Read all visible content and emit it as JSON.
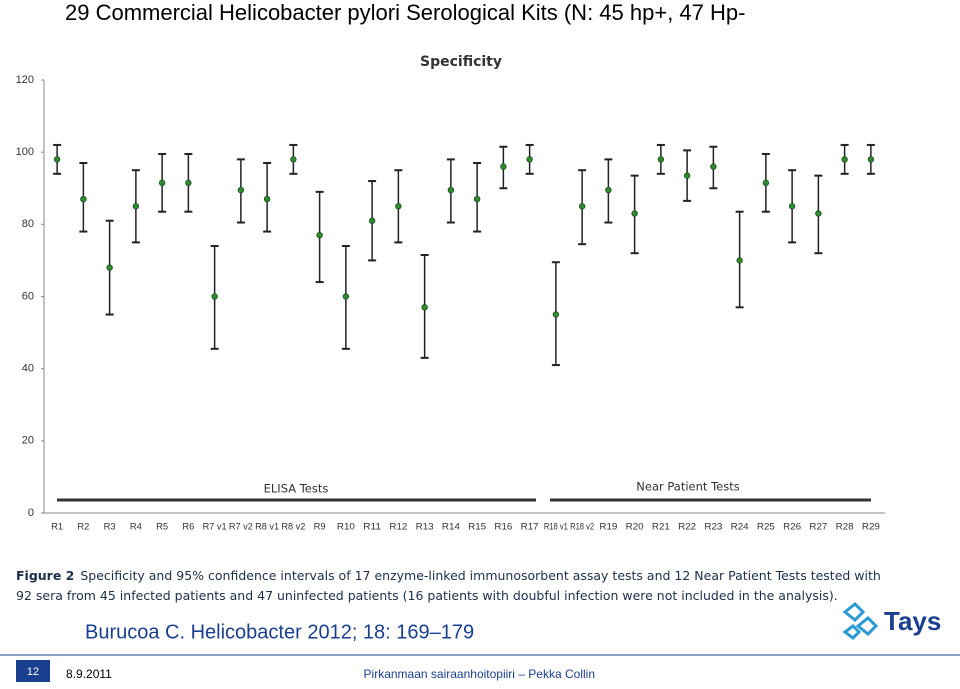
{
  "slide_title": "29 Commercial Helicobacter pylori Serological Kits (N: 45 hp+, 47 Hp-",
  "chart_data": {
    "type": "errorbar",
    "title": "Specificity",
    "categories": [
      "R1",
      "R2",
      "R3",
      "R4",
      "R5",
      "R6",
      "R7 v1",
      "R7 v2",
      "R8 v1",
      "R8 v2",
      "R9",
      "R10",
      "R11",
      "R12",
      "R13",
      "R14",
      "R15",
      "R16",
      "R17",
      "R18 v1",
      "R18 v2",
      "R19",
      "R20",
      "R21",
      "R22",
      "R23",
      "R24",
      "R25",
      "R26",
      "R27",
      "R28",
      "R29"
    ],
    "values": [
      98,
      87,
      68,
      85,
      91.5,
      91.5,
      60,
      89.5,
      87,
      98,
      77,
      60,
      81,
      85,
      57,
      89.5,
      87,
      96,
      98,
      55,
      85,
      89.5,
      83,
      98,
      93.5,
      96,
      70,
      91.5,
      85,
      83,
      98,
      98
    ],
    "upper": [
      102,
      97,
      81,
      95,
      99.5,
      99.5,
      74,
      98,
      97,
      102,
      89,
      74,
      92,
      95,
      71.5,
      98,
      97,
      101.5,
      102,
      69.5,
      95,
      98,
      93.5,
      102,
      100.5,
      101.5,
      83.5,
      99.5,
      95,
      93.5,
      102,
      102
    ],
    "lower": [
      94,
      78,
      55,
      75,
      83.5,
      83.5,
      45.5,
      80.5,
      78,
      94,
      64,
      45.5,
      70,
      75,
      43,
      80.5,
      78,
      90,
      94,
      41,
      74.5,
      80.5,
      72,
      94,
      86.5,
      90,
      57,
      83.5,
      75,
      72,
      94,
      94
    ],
    "color": "#2e8b2e",
    "bar_color": "#222222",
    "ylim": [
      0,
      120
    ],
    "yticks": [
      0,
      20,
      40,
      60,
      80,
      100,
      120
    ],
    "grid": false,
    "annotations": [
      "ELISA Tests",
      "Near Patient Tests"
    ]
  },
  "caption": {
    "label": "Figure 2",
    "text": "Specificity and 95% confidence intervals of 17 enzyme-linked immunosorbent assay tests and 12 Near Patient Tests tested with 92 sera from 45 infected patients and 47 uninfected patients (16 patients with doubful infection were not included in the analysis)."
  },
  "citation": "Burucoa  C. Helicobacter 2012; 18: 169–179",
  "logo": "Tays",
  "footer": {
    "page": "12",
    "date": "8.9.2011",
    "organization": "Pirkanmaan sairaanhoitopiiri – Pekka Collin"
  }
}
